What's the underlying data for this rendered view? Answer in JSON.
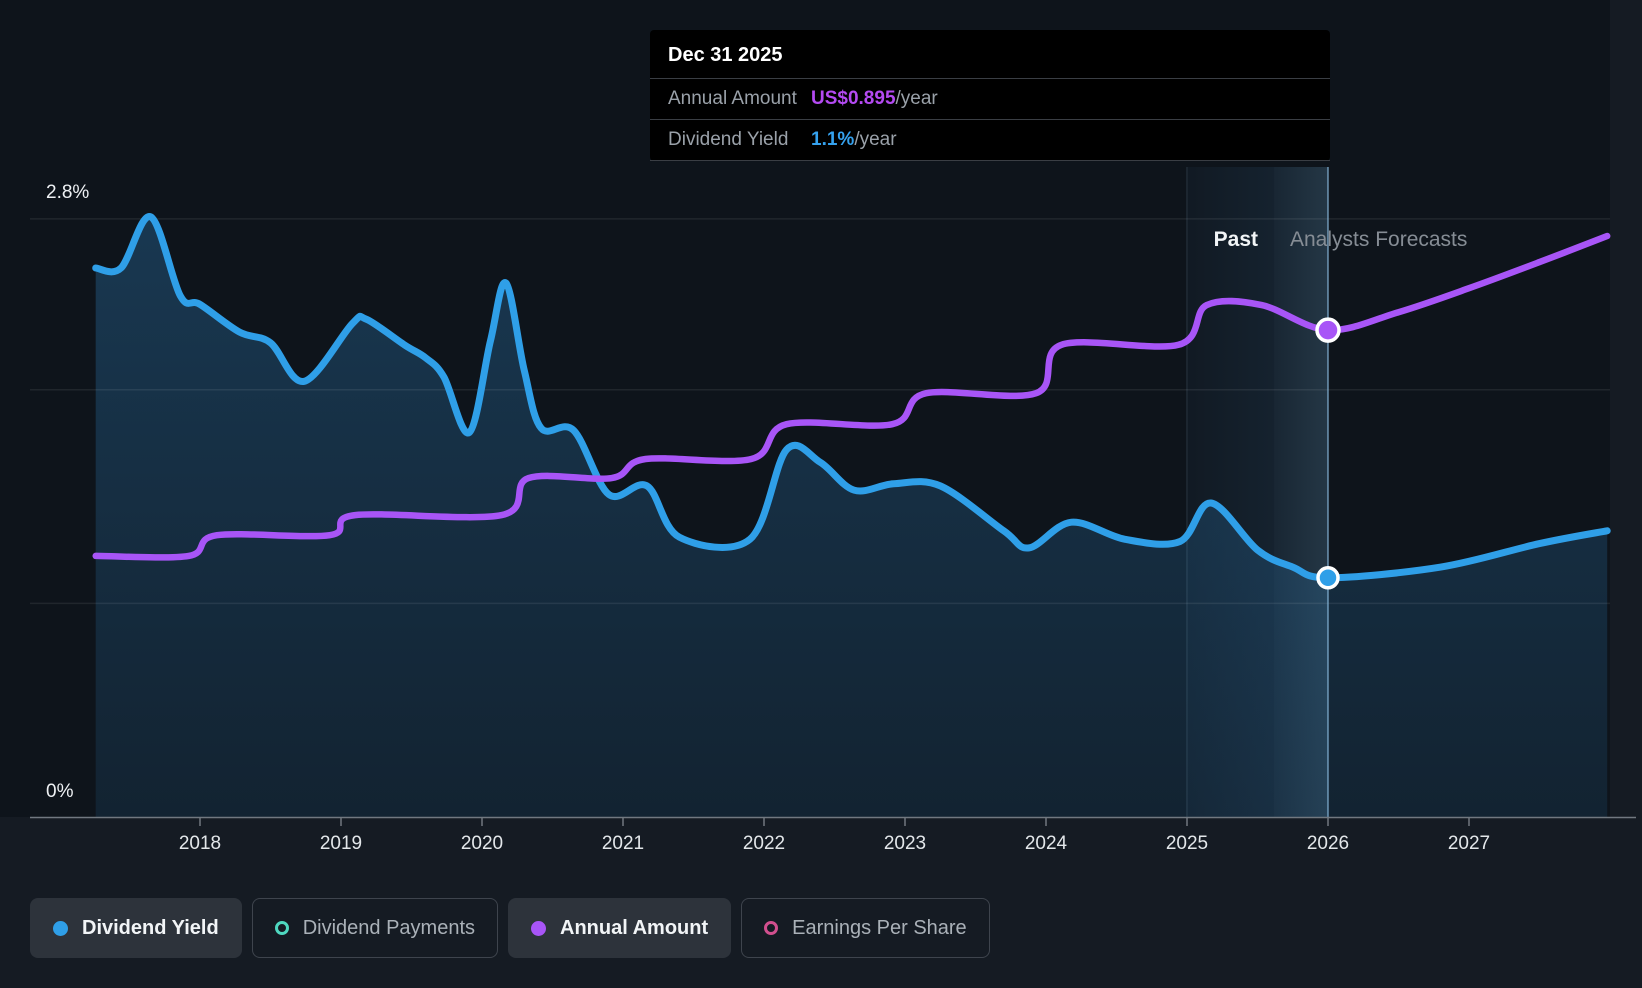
{
  "colors": {
    "dividend_yield": "#2f9fe8",
    "annual_amount": "#a855f7",
    "dividend_payments": "#4fd8c0",
    "earnings_per_share": "#d14f8e",
    "tooltip_value_amount": "#b44af2",
    "tooltip_value_yield": "#35a2ef",
    "gridline": "rgba(255,255,255,0.08)",
    "axis_line": "#717880",
    "guide_line_strong": "rgba(140,190,225,0.55)",
    "guide_line_faint": "rgba(140,190,225,0.22)",
    "area_fill_top": "rgba(45,125,185,0.34)",
    "area_fill_bottom": "rgba(45,125,185,0.14)",
    "marker_stroke": "#ffffff"
  },
  "tooltip": {
    "title": "Dec 31 2025",
    "rows": [
      {
        "label": "Annual Amount",
        "value": "US$0.895",
        "suffix": "/year",
        "color_key": "tooltip_value_amount"
      },
      {
        "label": "Dividend Yield",
        "value": "1.1%",
        "suffix": "/year",
        "color_key": "tooltip_value_yield"
      }
    ]
  },
  "chart_data": {
    "type": "area+line",
    "x_axis": {
      "ticks": [
        2018,
        2019,
        2020,
        2021,
        2022,
        2023,
        2024,
        2025,
        2026,
        2027
      ]
    },
    "y_axis": {
      "max_label": "2.8%",
      "min_label": "0%",
      "unit": "%",
      "ylim": [
        0,
        2.8
      ],
      "gridlines_pct": [
        2.8,
        2.0,
        1.0
      ]
    },
    "annotations": {
      "past_label": "Past",
      "forecast_label": "Analysts Forecasts",
      "band_start_year": 2025.0,
      "divider_year": 2025.62,
      "hover_year": 2026.0
    },
    "series": [
      {
        "name": "Dividend Yield",
        "unit": "%",
        "color_key": "dividend_yield",
        "style": "area-line",
        "marker_at": 2026.0,
        "points": [
          [
            2017.26,
            2.57
          ],
          [
            2017.44,
            2.57
          ],
          [
            2017.65,
            2.81
          ],
          [
            2017.86,
            2.44
          ],
          [
            2018.0,
            2.4
          ],
          [
            2018.28,
            2.27
          ],
          [
            2018.5,
            2.22
          ],
          [
            2018.74,
            2.04
          ],
          [
            2019.08,
            2.31
          ],
          [
            2019.18,
            2.33
          ],
          [
            2019.45,
            2.21
          ],
          [
            2019.6,
            2.15
          ],
          [
            2019.73,
            2.06
          ],
          [
            2019.91,
            1.8
          ],
          [
            2020.06,
            2.23
          ],
          [
            2020.17,
            2.5
          ],
          [
            2020.3,
            2.09
          ],
          [
            2020.42,
            1.82
          ],
          [
            2020.65,
            1.81
          ],
          [
            2020.9,
            1.51
          ],
          [
            2021.17,
            1.55
          ],
          [
            2021.4,
            1.31
          ],
          [
            2021.9,
            1.3
          ],
          [
            2022.16,
            1.72
          ],
          [
            2022.4,
            1.66
          ],
          [
            2022.64,
            1.53
          ],
          [
            2022.92,
            1.56
          ],
          [
            2023.25,
            1.55
          ],
          [
            2023.7,
            1.34
          ],
          [
            2023.88,
            1.26
          ],
          [
            2024.18,
            1.38
          ],
          [
            2024.56,
            1.3
          ],
          [
            2024.95,
            1.29
          ],
          [
            2025.17,
            1.47
          ],
          [
            2025.5,
            1.25
          ],
          [
            2025.75,
            1.17
          ],
          [
            2026.0,
            1.12
          ],
          [
            2026.8,
            1.17
          ],
          [
            2027.5,
            1.28
          ],
          [
            2027.98,
            1.34
          ]
        ]
      },
      {
        "name": "Annual Amount",
        "unit": "US$",
        "color_key": "annual_amount",
        "style": "line",
        "marker_at": 2026.0,
        "points": [
          [
            2017.26,
            0.48
          ],
          [
            2017.92,
            0.48
          ],
          [
            2018.12,
            0.518
          ],
          [
            2018.92,
            0.518
          ],
          [
            2019.1,
            0.555
          ],
          [
            2020.14,
            0.555
          ],
          [
            2020.33,
            0.623
          ],
          [
            2020.92,
            0.623
          ],
          [
            2021.16,
            0.658
          ],
          [
            2021.91,
            0.658
          ],
          [
            2022.16,
            0.722
          ],
          [
            2022.91,
            0.722
          ],
          [
            2023.15,
            0.779
          ],
          [
            2023.93,
            0.779
          ],
          [
            2024.11,
            0.868
          ],
          [
            2024.94,
            0.868
          ],
          [
            2025.14,
            0.941
          ],
          [
            2025.53,
            0.941
          ],
          [
            2026.0,
            0.895
          ],
          [
            2026.5,
            0.928
          ],
          [
            2027.0,
            0.972
          ],
          [
            2027.5,
            1.02
          ],
          [
            2027.98,
            1.068
          ]
        ]
      }
    ]
  },
  "legend": {
    "items": [
      {
        "label": "Dividend Yield",
        "color_key": "dividend_yield",
        "dot": "filled",
        "state": "active"
      },
      {
        "label": "Dividend Payments",
        "color_key": "dividend_payments",
        "dot": "ring",
        "state": "inactive"
      },
      {
        "label": "Annual Amount",
        "color_key": "annual_amount",
        "dot": "filled",
        "state": "active"
      },
      {
        "label": "Earnings Per Share",
        "color_key": "earnings_per_share",
        "dot": "ring",
        "state": "inactive"
      }
    ]
  }
}
